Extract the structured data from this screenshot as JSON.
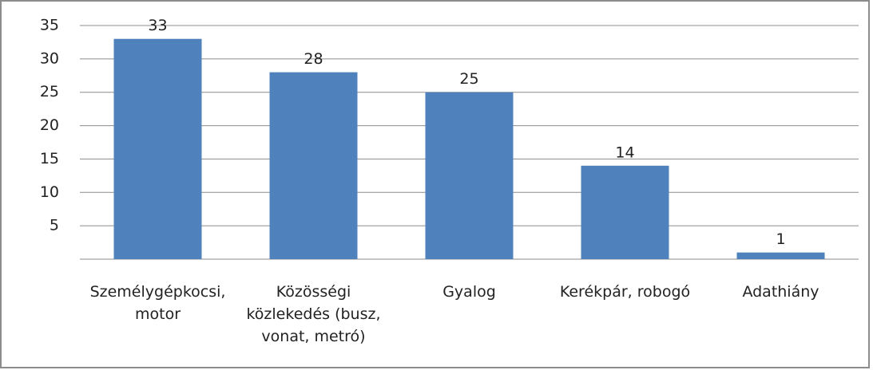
{
  "chart_data": {
    "type": "bar",
    "categories": [
      "Személygépkocsi, motor",
      "Közösségi közlekedés (busz, vonat, metró)",
      "Gyalog",
      "Kerékpár, robogó",
      "Adathiány"
    ],
    "values": [
      33,
      28,
      25,
      14,
      1
    ],
    "color": "#4f81bd",
    "ylim": [
      0,
      35
    ],
    "yticks": [
      5,
      10,
      15,
      20,
      25,
      30,
      35
    ],
    "grid": true
  }
}
